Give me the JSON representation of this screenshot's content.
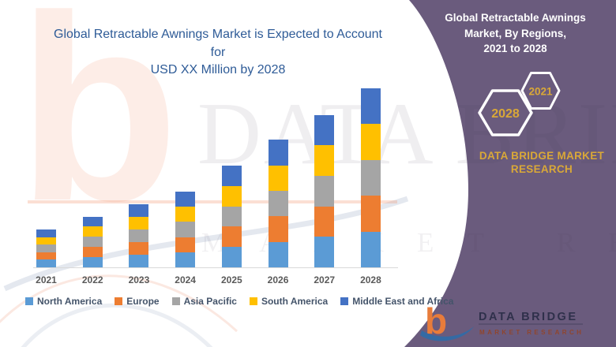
{
  "left_panel": {
    "title_lines": [
      "Global Retractable Awnings Market is Expected to Account for",
      "USD XX Million by 2028"
    ]
  },
  "chart_data": {
    "type": "bar",
    "stacked": true,
    "title": "Global Retractable Awnings Market is Expected to Account for USD XX Million by 2028",
    "xlabel": "",
    "ylabel": "",
    "y_axis_shown": false,
    "grid": false,
    "legend_position": "bottom",
    "categories": [
      "2021",
      "2022",
      "2023",
      "2024",
      "2025",
      "2026",
      "2027",
      "2028"
    ],
    "series": [
      {
        "name": "North America",
        "color": "#5B9BD5",
        "values": [
          4.2,
          5.68,
          7.08,
          8.48,
          11.36,
          14.24,
          17.04,
          20.0
        ]
      },
      {
        "name": "Europe",
        "color": "#ED7D31",
        "values": [
          4.2,
          5.68,
          7.08,
          8.48,
          11.36,
          14.24,
          17.04,
          20.0
        ]
      },
      {
        "name": "Asia Pacific",
        "color": "#A5A5A5",
        "values": [
          4.2,
          5.68,
          7.08,
          8.48,
          11.36,
          14.24,
          17.04,
          20.0
        ]
      },
      {
        "name": "South America",
        "color": "#FFC000",
        "values": [
          4.2,
          5.68,
          7.08,
          8.48,
          11.36,
          14.24,
          17.04,
          20.0
        ]
      },
      {
        "name": "Middle East and Africa",
        "color": "#4472C4",
        "values": [
          4.2,
          5.68,
          7.08,
          8.48,
          11.36,
          14.24,
          17.04,
          20.0
        ]
      }
    ],
    "totals_relative": [
      21.0,
      28.4,
      35.4,
      42.4,
      56.8,
      71.2,
      85.2,
      100.0
    ],
    "value_note": "No numeric axis shown in source ('USD XX Million' placeholder); values are relative units estimated from bar heights with 2028 total = 100, split equally among the five visible regional segments."
  },
  "right_panel": {
    "heading_lines": [
      "Global Retractable Awnings",
      "Market, By Regions,",
      "2021 to 2028"
    ],
    "hexagons": [
      {
        "label": "2028"
      },
      {
        "label": "2021"
      }
    ],
    "brand_lines": [
      "DATA BRIDGE MARKET",
      "RESEARCH"
    ]
  },
  "watermark": {
    "letter": "b",
    "line1": "DATA BRIDGE",
    "line2": "MARKET RESEARCH"
  },
  "logo": {
    "b": "b",
    "name": "DATA BRIDGE",
    "sub": "MARKET RESEARCH"
  },
  "colors": {
    "title_blue": "#2E5B97",
    "panel_purple": "#6A5B7D",
    "gold": "#D9A838",
    "axis_label_gray": "#595959",
    "legend_text": "#44546A",
    "logo_orange": "#E87C3B",
    "logo_blue": "#2F6BA8"
  }
}
